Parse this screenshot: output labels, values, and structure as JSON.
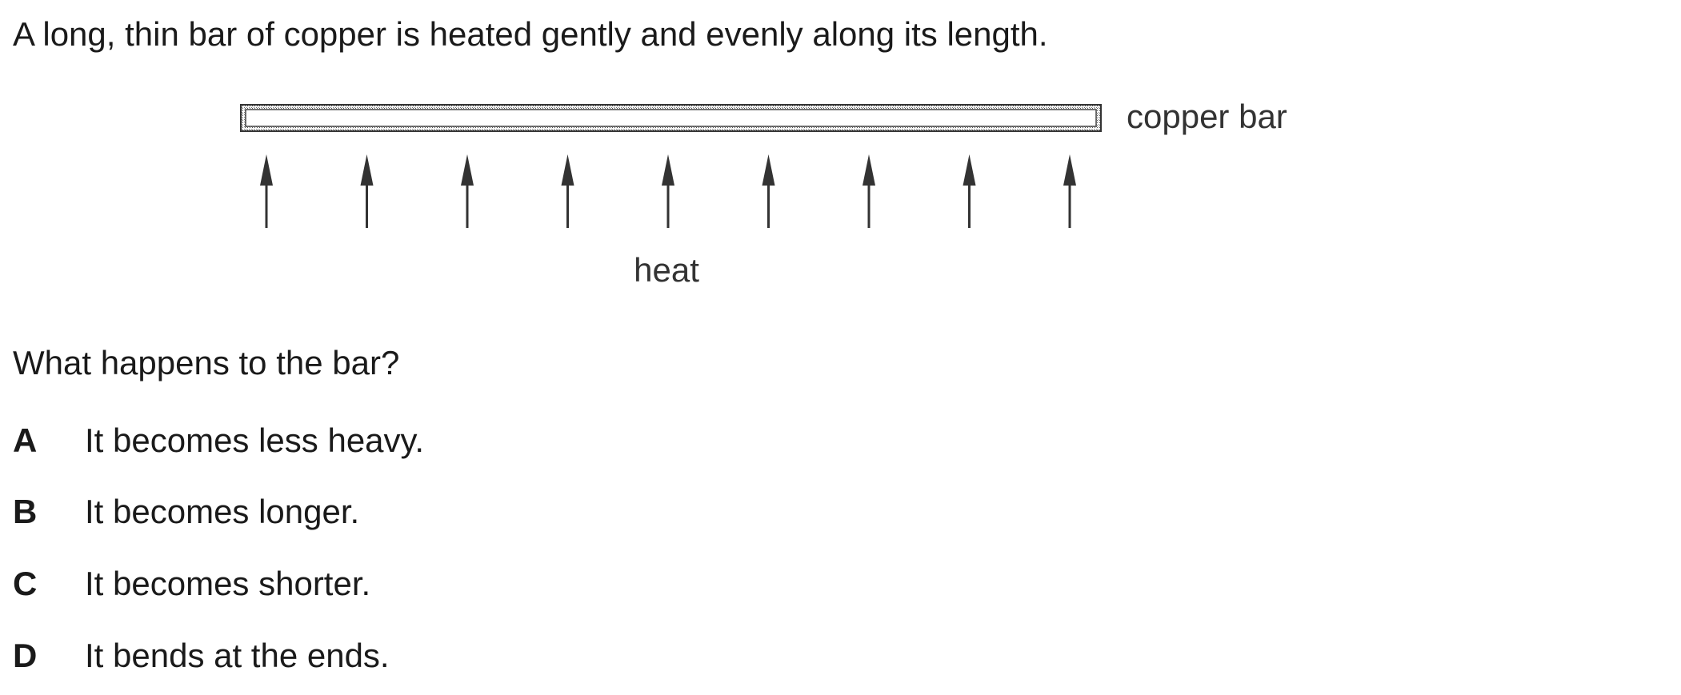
{
  "intro": "A long, thin bar of copper is heated gently and evenly along its length.",
  "diagram": {
    "bar_label": "copper bar",
    "heat_label": "heat",
    "arrow_count": 9
  },
  "question": "What happens to the bar?",
  "options": [
    {
      "letter": "A",
      "text": "It becomes less heavy."
    },
    {
      "letter": "B",
      "text": "It becomes longer."
    },
    {
      "letter": "C",
      "text": "It becomes shorter."
    },
    {
      "letter": "D",
      "text": "It bends at the ends."
    }
  ]
}
